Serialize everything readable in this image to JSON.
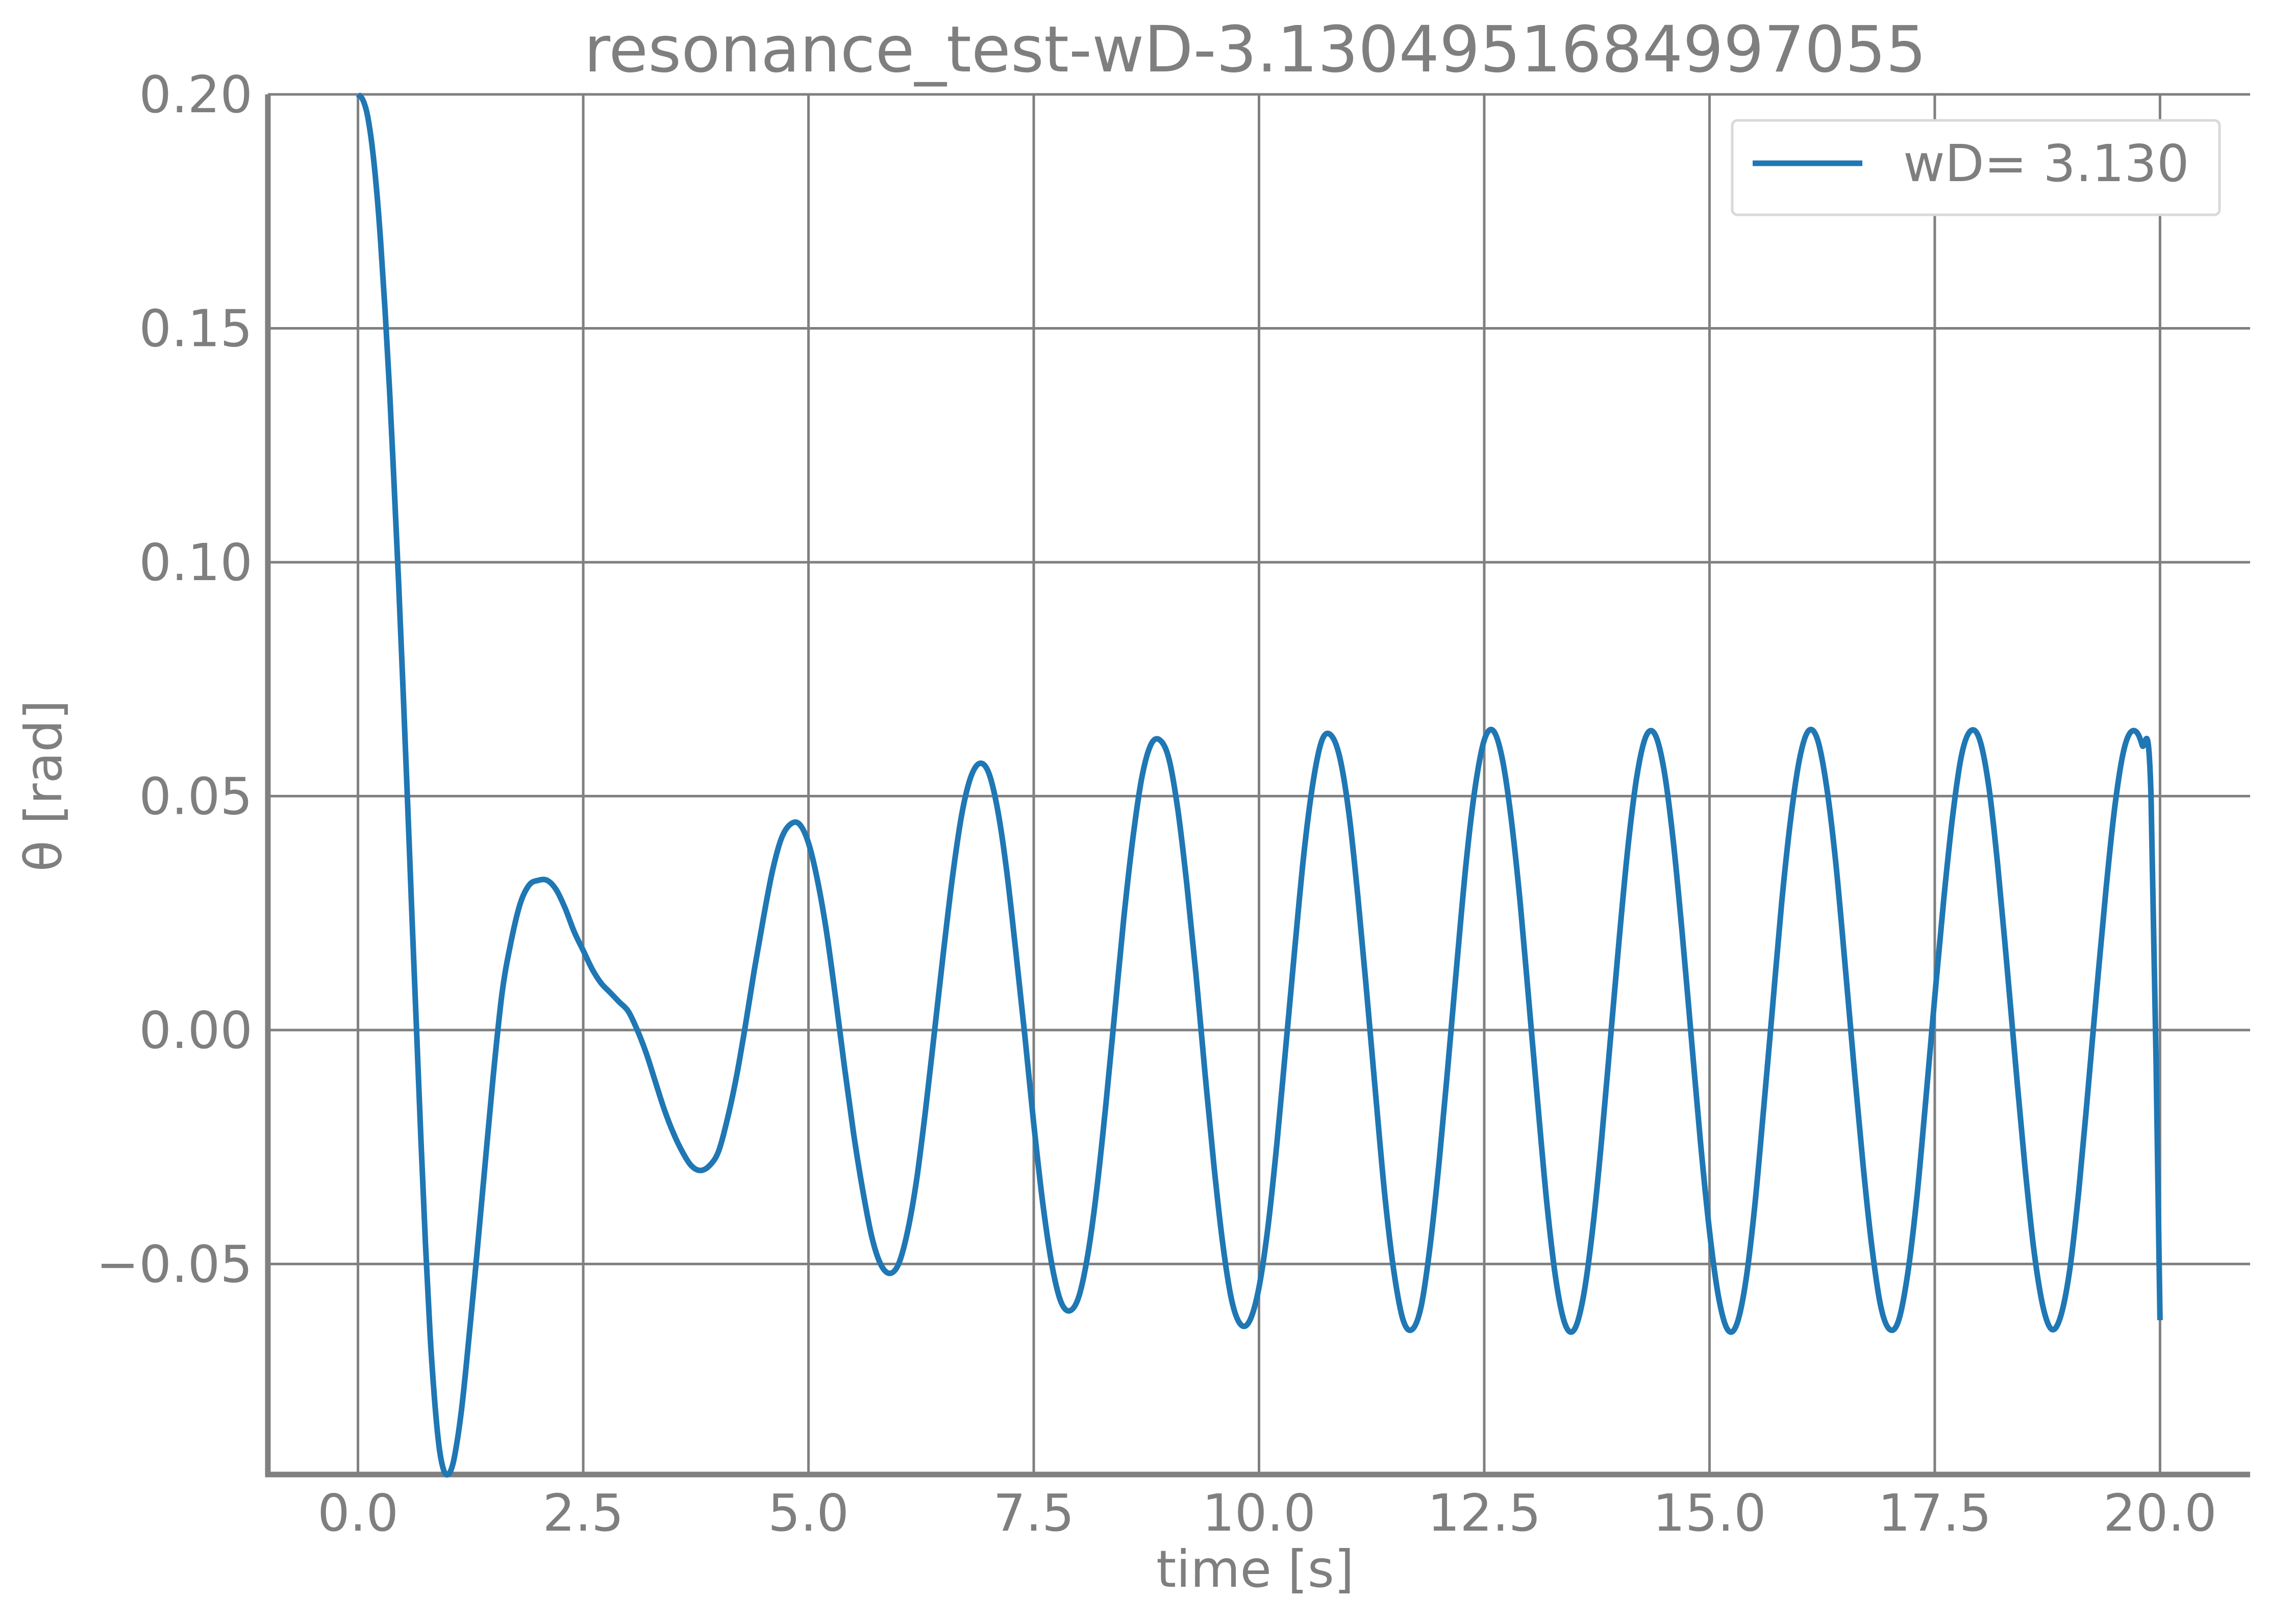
{
  "chart_data": {
    "type": "line",
    "title": "resonance_test-wD-3.1304951684997055",
    "xlabel": "time [s]",
    "ylabel": "θ [rad]",
    "xlim": [
      -1.0,
      21.0
    ],
    "ylim": [
      -0.095,
      0.2
    ],
    "x_ticks": [
      0.0,
      2.5,
      5.0,
      7.5,
      10.0,
      12.5,
      15.0,
      17.5,
      20.0
    ],
    "x_tick_labels": [
      "0.0",
      "2.5",
      "5.0",
      "7.5",
      "10.0",
      "12.5",
      "15.0",
      "17.5",
      "20.0"
    ],
    "y_ticks": [
      -0.05,
      0.0,
      0.05,
      0.1,
      0.15,
      0.2
    ],
    "y_tick_labels": [
      "−0.05",
      "0.00",
      "0.05",
      "0.10",
      "0.15",
      "0.20"
    ],
    "grid": true,
    "legend_position": "top-right",
    "series": [
      {
        "name": "wD= 3.130",
        "color": "#1f77b4",
        "points": [
          [
            0.0,
            0.2
          ],
          [
            0.05,
            0.199
          ],
          [
            0.1,
            0.196
          ],
          [
            0.15,
            0.19
          ],
          [
            0.2,
            0.181
          ],
          [
            0.25,
            0.169
          ],
          [
            0.3,
            0.154
          ],
          [
            0.35,
            0.137
          ],
          [
            0.4,
            0.117
          ],
          [
            0.45,
            0.096
          ],
          [
            0.5,
            0.073
          ],
          [
            0.55,
            0.049
          ],
          [
            0.6,
            0.024
          ],
          [
            0.65,
            0.0
          ],
          [
            0.7,
            -0.024
          ],
          [
            0.75,
            -0.046
          ],
          [
            0.8,
            -0.065
          ],
          [
            0.85,
            -0.079
          ],
          [
            0.9,
            -0.089
          ],
          [
            0.95,
            -0.094
          ],
          [
            1.0,
            -0.095
          ],
          [
            1.05,
            -0.093
          ],
          [
            1.1,
            -0.088
          ],
          [
            1.15,
            -0.081
          ],
          [
            1.2,
            -0.072
          ],
          [
            1.3,
            -0.052
          ],
          [
            1.4,
            -0.031
          ],
          [
            1.5,
            -0.01
          ],
          [
            1.6,
            0.008
          ],
          [
            1.7,
            0.019
          ],
          [
            1.8,
            0.027
          ],
          [
            1.9,
            0.031
          ],
          [
            2.0,
            0.032
          ],
          [
            2.1,
            0.032
          ],
          [
            2.2,
            0.03
          ],
          [
            2.3,
            0.026
          ],
          [
            2.4,
            0.021
          ],
          [
            2.5,
            0.017
          ],
          [
            2.6,
            0.013
          ],
          [
            2.7,
            0.01
          ],
          [
            2.8,
            0.008
          ],
          [
            2.9,
            0.006
          ],
          [
            3.0,
            0.004
          ],
          [
            3.1,
            0.0
          ],
          [
            3.2,
            -0.005
          ],
          [
            3.3,
            -0.011
          ],
          [
            3.4,
            -0.017
          ],
          [
            3.5,
            -0.022
          ],
          [
            3.6,
            -0.026
          ],
          [
            3.7,
            -0.029
          ],
          [
            3.8,
            -0.03
          ],
          [
            3.9,
            -0.029
          ],
          [
            4.0,
            -0.026
          ],
          [
            4.1,
            -0.019
          ],
          [
            4.2,
            -0.01
          ],
          [
            4.3,
            0.001
          ],
          [
            4.4,
            0.013
          ],
          [
            4.5,
            0.024
          ],
          [
            4.6,
            0.034
          ],
          [
            4.7,
            0.041
          ],
          [
            4.8,
            0.044
          ],
          [
            4.9,
            0.044
          ],
          [
            5.0,
            0.04
          ],
          [
            5.1,
            0.032
          ],
          [
            5.2,
            0.021
          ],
          [
            5.3,
            0.007
          ],
          [
            5.4,
            -0.008
          ],
          [
            5.5,
            -0.022
          ],
          [
            5.6,
            -0.034
          ],
          [
            5.7,
            -0.044
          ],
          [
            5.8,
            -0.05
          ],
          [
            5.9,
            -0.052
          ],
          [
            6.0,
            -0.05
          ],
          [
            6.1,
            -0.043
          ],
          [
            6.2,
            -0.032
          ],
          [
            6.3,
            -0.017
          ],
          [
            6.4,
            0.0
          ],
          [
            6.5,
            0.017
          ],
          [
            6.6,
            0.033
          ],
          [
            6.7,
            0.046
          ],
          [
            6.8,
            0.054
          ],
          [
            6.9,
            0.057
          ],
          [
            7.0,
            0.055
          ],
          [
            7.1,
            0.047
          ],
          [
            7.2,
            0.034
          ],
          [
            7.3,
            0.017
          ],
          [
            7.4,
            -0.001
          ],
          [
            7.5,
            -0.02
          ],
          [
            7.6,
            -0.037
          ],
          [
            7.7,
            -0.05
          ],
          [
            7.8,
            -0.058
          ],
          [
            7.9,
            -0.06
          ],
          [
            8.0,
            -0.057
          ],
          [
            8.1,
            -0.048
          ],
          [
            8.2,
            -0.034
          ],
          [
            8.3,
            -0.016
          ],
          [
            8.4,
            0.004
          ],
          [
            8.5,
            0.024
          ],
          [
            8.6,
            0.041
          ],
          [
            8.7,
            0.054
          ],
          [
            8.8,
            0.061
          ],
          [
            8.9,
            0.062
          ],
          [
            9.0,
            0.058
          ],
          [
            9.1,
            0.047
          ],
          [
            9.2,
            0.031
          ],
          [
            9.3,
            0.012
          ],
          [
            9.4,
            -0.009
          ],
          [
            9.5,
            -0.029
          ],
          [
            9.6,
            -0.046
          ],
          [
            9.7,
            -0.058
          ],
          [
            9.8,
            -0.063
          ],
          [
            9.9,
            -0.062
          ],
          [
            10.0,
            -0.055
          ],
          [
            10.1,
            -0.042
          ],
          [
            10.2,
            -0.024
          ],
          [
            10.3,
            -0.003
          ],
          [
            10.4,
            0.018
          ],
          [
            10.5,
            0.038
          ],
          [
            10.6,
            0.053
          ],
          [
            10.7,
            0.062
          ],
          [
            10.8,
            0.063
          ],
          [
            10.9,
            0.058
          ],
          [
            11.0,
            0.046
          ],
          [
            11.1,
            0.028
          ],
          [
            11.2,
            0.007
          ],
          [
            11.3,
            -0.015
          ],
          [
            11.4,
            -0.036
          ],
          [
            11.5,
            -0.052
          ],
          [
            11.6,
            -0.062
          ],
          [
            11.7,
            -0.064
          ],
          [
            11.8,
            -0.059
          ],
          [
            11.9,
            -0.046
          ],
          [
            12.0,
            -0.028
          ],
          [
            12.1,
            -0.007
          ],
          [
            12.2,
            0.015
          ],
          [
            12.3,
            0.036
          ],
          [
            12.4,
            0.052
          ],
          [
            12.5,
            0.062
          ],
          [
            12.6,
            0.064
          ],
          [
            12.7,
            0.058
          ],
          [
            12.8,
            0.045
          ],
          [
            12.9,
            0.027
          ],
          [
            13.0,
            0.005
          ],
          [
            13.1,
            -0.017
          ],
          [
            13.2,
            -0.038
          ],
          [
            13.3,
            -0.054
          ],
          [
            13.4,
            -0.063
          ],
          [
            13.5,
            -0.064
          ],
          [
            13.6,
            -0.057
          ],
          [
            13.7,
            -0.043
          ],
          [
            13.8,
            -0.024
          ],
          [
            13.9,
            -0.002
          ],
          [
            14.0,
            0.02
          ],
          [
            14.1,
            0.04
          ],
          [
            14.2,
            0.055
          ],
          [
            14.3,
            0.063
          ],
          [
            14.4,
            0.063
          ],
          [
            14.5,
            0.055
          ],
          [
            14.6,
            0.04
          ],
          [
            14.7,
            0.02
          ],
          [
            14.8,
            -0.002
          ],
          [
            14.9,
            -0.024
          ],
          [
            15.0,
            -0.043
          ],
          [
            15.1,
            -0.057
          ],
          [
            15.2,
            -0.064
          ],
          [
            15.3,
            -0.063
          ],
          [
            15.4,
            -0.054
          ],
          [
            15.5,
            -0.038
          ],
          [
            15.6,
            -0.017
          ],
          [
            15.7,
            0.005
          ],
          [
            15.8,
            0.027
          ],
          [
            15.9,
            0.045
          ],
          [
            16.0,
            0.058
          ],
          [
            16.1,
            0.064
          ],
          [
            16.2,
            0.062
          ],
          [
            16.3,
            0.052
          ],
          [
            16.4,
            0.036
          ],
          [
            16.5,
            0.015
          ],
          [
            16.6,
            -0.007
          ],
          [
            16.7,
            -0.028
          ],
          [
            16.8,
            -0.046
          ],
          [
            16.9,
            -0.059
          ],
          [
            17.0,
            -0.064
          ],
          [
            17.1,
            -0.062
          ],
          [
            17.2,
            -0.052
          ],
          [
            17.3,
            -0.036
          ],
          [
            17.4,
            -0.015
          ],
          [
            17.5,
            0.007
          ],
          [
            17.6,
            0.028
          ],
          [
            17.7,
            0.046
          ],
          [
            17.8,
            0.059
          ],
          [
            17.9,
            0.064
          ],
          [
            18.0,
            0.062
          ],
          [
            18.1,
            0.052
          ],
          [
            18.2,
            0.035
          ],
          [
            18.3,
            0.014
          ],
          [
            18.4,
            -0.008
          ],
          [
            18.5,
            -0.029
          ],
          [
            18.6,
            -0.047
          ],
          [
            18.7,
            -0.059
          ],
          [
            18.8,
            -0.064
          ],
          [
            18.9,
            -0.061
          ],
          [
            19.0,
            -0.051
          ],
          [
            19.1,
            -0.034
          ],
          [
            19.2,
            -0.013
          ],
          [
            19.3,
            0.009
          ],
          [
            19.4,
            0.03
          ],
          [
            19.5,
            0.048
          ],
          [
            19.6,
            0.06
          ],
          [
            19.7,
            0.064
          ],
          [
            19.8,
            0.061
          ],
          [
            19.9,
            0.05
          ],
          [
            20.0,
            -0.062
          ]
        ]
      }
    ]
  }
}
